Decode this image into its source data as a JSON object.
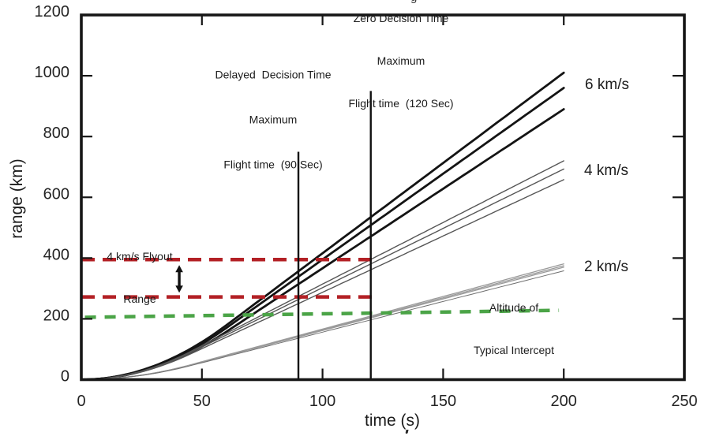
{
  "page": {
    "background": "#ffffff",
    "title_fragment": "g"
  },
  "chart_data": {
    "type": "line",
    "title": "",
    "xlabel": "time (s)",
    "ylabel": "range (km)",
    "xlim": [
      0,
      250
    ],
    "ylim": [
      0,
      1200
    ],
    "xticks": [
      0,
      50,
      100,
      150,
      200,
      250
    ],
    "yticks": [
      0,
      200,
      400,
      600,
      800,
      1000,
      1200
    ],
    "grid": false,
    "legend_position": "inline-right-of-curves",
    "model": "quadratic boost until burnout, then constant velocity; range read at t=200 s",
    "series": [
      {
        "name": "6 km/s interceptor family",
        "label": "6 km/s",
        "color": "#141414",
        "stroke_width": 2.8,
        "lines": [
          {
            "burnout_s": 60,
            "range_at_200s_km": 1010
          },
          {
            "burnout_s": 60,
            "range_at_200s_km": 960
          },
          {
            "burnout_s": 60,
            "range_at_200s_km": 890
          }
        ]
      },
      {
        "name": "4 km/s interceptor family",
        "label": "4 km/s",
        "color": "#565656",
        "stroke_width": 1.4,
        "lines": [
          {
            "burnout_s": 45,
            "range_at_200s_km": 720
          },
          {
            "burnout_s": 45,
            "range_at_200s_km": 693
          },
          {
            "burnout_s": 45,
            "range_at_200s_km": 658
          }
        ]
      },
      {
        "name": "2 km/s interceptor family",
        "label": "2 km/s",
        "color": "#9a9a9a",
        "stroke_width": 1.3,
        "lines": [
          {
            "burnout_s": 45,
            "range_at_200s_km": 381
          },
          {
            "burnout_s": 45,
            "range_at_200s_km": 375
          },
          {
            "burnout_s": 45,
            "range_at_200s_km": 370
          },
          {
            "burnout_s": 45,
            "range_at_200s_km": 358,
            "color": "#6f6f6f",
            "stroke_width": 1.0
          }
        ]
      }
    ],
    "vlines": [
      {
        "x_s": 90,
        "y_top_km": 750,
        "color": "#111111",
        "width": 2.4,
        "annotation": {
          "lines": [
            "Delayed  Decision Time",
            "Maximum",
            "Flight time  (90 Sec)"
          ]
        }
      },
      {
        "x_s": 120,
        "y_top_km": 950,
        "color": "#111111",
        "width": 2.4,
        "annotation": {
          "lines": [
            "Zero Decision Time",
            "Maximum",
            "Flight time  (120 Sec)"
          ]
        }
      }
    ],
    "hlines": [
      {
        "name": "flyout-range-upper",
        "style": "dashed",
        "color": "#b32025",
        "width": 4.5,
        "dash": "17 10",
        "from": {
          "t_s": 0,
          "km": 395
        },
        "to": {
          "t_s": 120.5,
          "km": 395
        }
      },
      {
        "name": "flyout-range-lower",
        "style": "dashed",
        "color": "#b32025",
        "width": 4.5,
        "dash": "17 10",
        "from": {
          "t_s": 0,
          "km": 272
        },
        "to": {
          "t_s": 121,
          "km": 272
        }
      },
      {
        "name": "intercept-altitude",
        "style": "dashed",
        "color": "#4ba447",
        "width": 4.5,
        "dash": "14 11",
        "from": {
          "t_s": 1.5,
          "km": 205
        },
        "to": {
          "t_s": 198,
          "km": 228
        }
      }
    ],
    "arrow": {
      "style": "double-headed-vertical",
      "color": "#111111",
      "x_t_s": 40.6,
      "top_km": 377,
      "bottom_km": 286
    },
    "annotations": {
      "flyout": {
        "lines": [
          "4 km/s Flyout",
          "Range"
        ]
      },
      "altitude": {
        "lines": [
          "Altitude of",
          "Typical Intercept"
        ]
      }
    }
  }
}
